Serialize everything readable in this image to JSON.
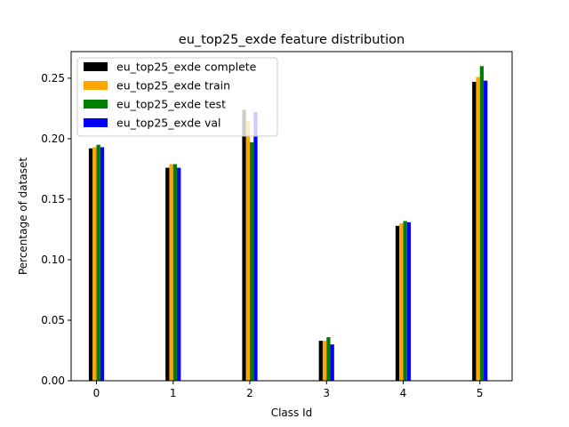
{
  "chart_data": {
    "type": "bar",
    "title": "eu_top25_exde feature distribution",
    "xlabel": "Class Id",
    "ylabel": "Percentage of dataset",
    "categories": [
      "0",
      "1",
      "2",
      "3",
      "4",
      "5"
    ],
    "ylim": [
      0,
      0.272
    ],
    "yticks": [
      "0.00",
      "0.05",
      "0.10",
      "0.15",
      "0.20",
      "0.25"
    ],
    "grid": false,
    "legend_position": "top-left",
    "series": [
      {
        "name": "eu_top25_exde complete",
        "color": "#000000",
        "values": [
          0.192,
          0.176,
          0.224,
          0.033,
          0.128,
          0.247
        ]
      },
      {
        "name": "eu_top25_exde train",
        "color": "#ffa500",
        "values": [
          0.193,
          0.179,
          0.215,
          0.033,
          0.13,
          0.251
        ]
      },
      {
        "name": "eu_top25_exde test",
        "color": "#008000",
        "values": [
          0.195,
          0.179,
          0.197,
          0.036,
          0.132,
          0.26
        ]
      },
      {
        "name": "eu_top25_exde val",
        "color": "#0000ff",
        "values": [
          0.193,
          0.176,
          0.222,
          0.03,
          0.131,
          0.248
        ]
      }
    ]
  }
}
